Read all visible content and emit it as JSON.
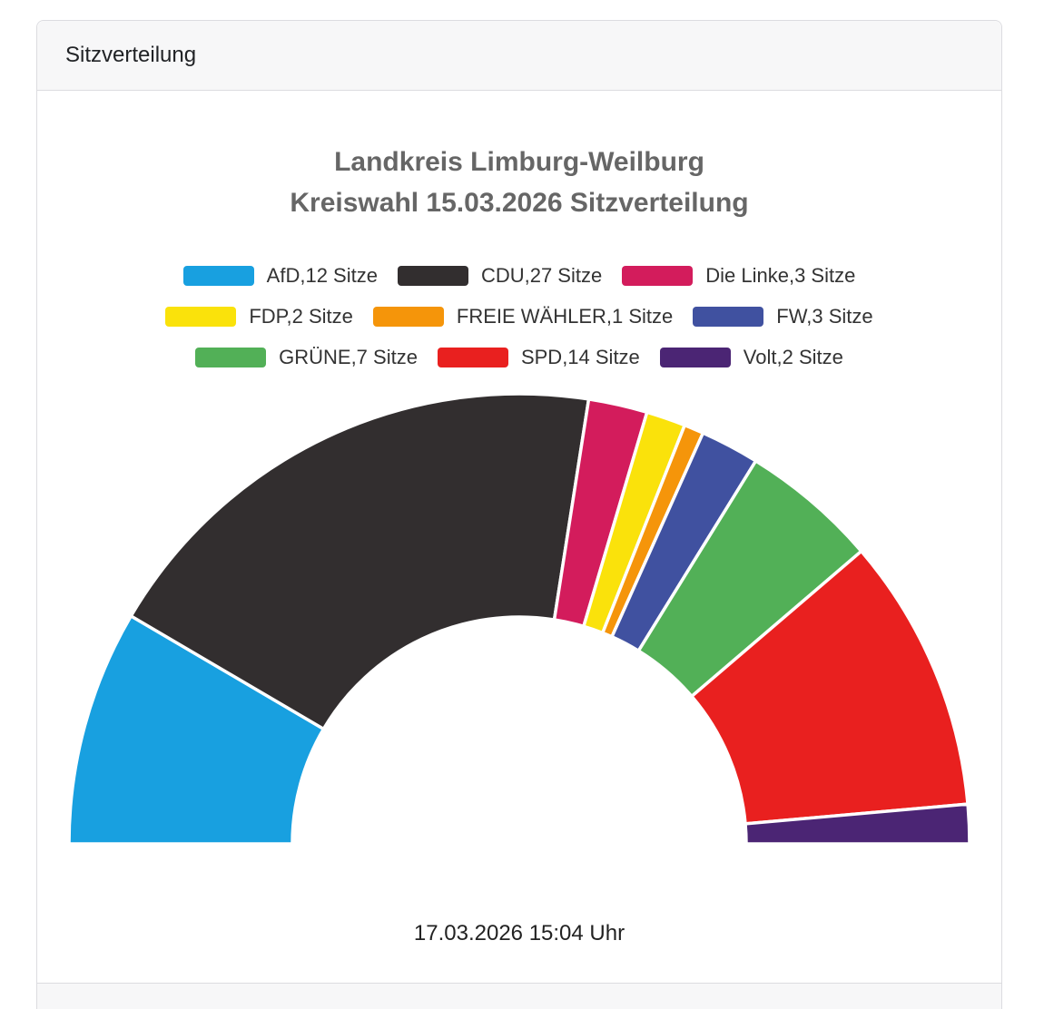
{
  "card": {
    "header": "Sitzverteilung"
  },
  "chart_data": {
    "type": "pie",
    "variant": "half-donut",
    "title_lines": {
      "0": "Landkreis Limburg-Weilburg",
      "1": "Kreiswahl 15.03.2026 Sitzverteilung"
    },
    "total_seats": 71,
    "unit": "Sitze",
    "series": [
      {
        "name": "AfD",
        "seats": 12,
        "label": "AfD,12 Sitze",
        "color": "#18A0E0"
      },
      {
        "name": "CDU",
        "seats": 27,
        "label": "CDU,27 Sitze",
        "color": "#322E2F"
      },
      {
        "name": "Die Linke",
        "seats": 3,
        "label": "Die Linke,3 Sitze",
        "color": "#D31C5C"
      },
      {
        "name": "FDP",
        "seats": 2,
        "label": "FDP,2 Sitze",
        "color": "#FAE20B"
      },
      {
        "name": "FREIE WÄHLER",
        "seats": 1,
        "label": "FREIE WÄHLER,1 Sitze",
        "color": "#F5950A"
      },
      {
        "name": "FW",
        "seats": 3,
        "label": "FW,3 Sitze",
        "color": "#4051A0"
      },
      {
        "name": "GRÜNE",
        "seats": 7,
        "label": "GRÜNE,7 Sitze",
        "color": "#52B057"
      },
      {
        "name": "SPD",
        "seats": 14,
        "label": "SPD,14 Sitze",
        "color": "#E9201F"
      },
      {
        "name": "Volt",
        "seats": 2,
        "label": "Volt,2 Sitze",
        "color": "#4B2574"
      }
    ],
    "legend_rows": [
      [
        0,
        1,
        2
      ],
      [
        3,
        4,
        5
      ],
      [
        6,
        7,
        8
      ]
    ],
    "start_angle_deg": -90,
    "end_angle_deg": 90,
    "inner_radius_ratio": 0.504,
    "slice_border_color": "#ffffff",
    "legend_position": "top",
    "timestamp": "17.03.2026 15:04 Uhr"
  }
}
